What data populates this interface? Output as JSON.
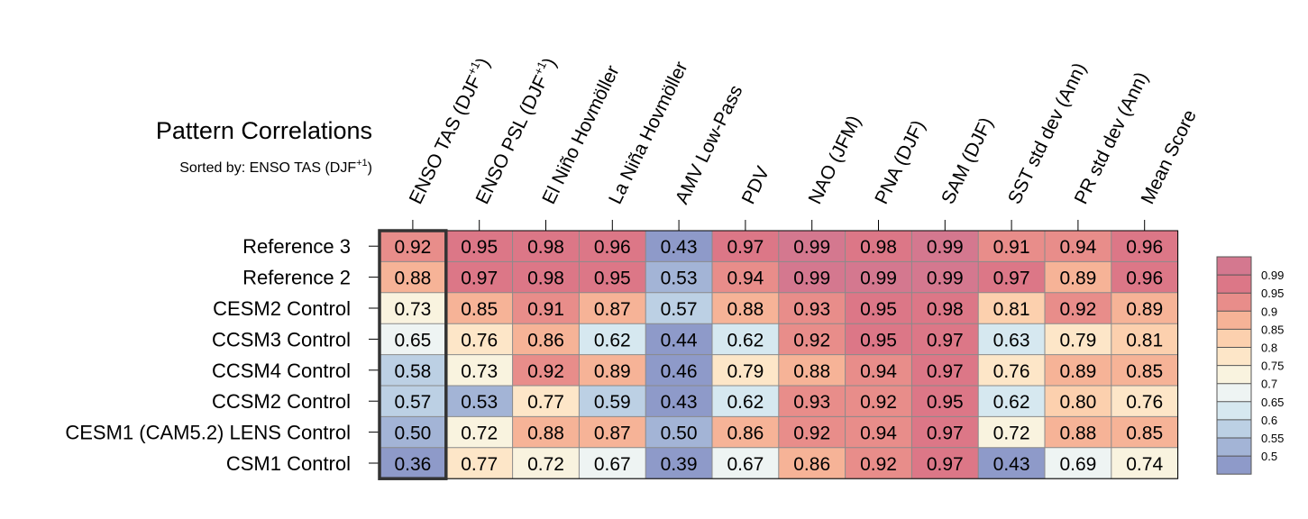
{
  "chart_data": {
    "type": "heatmap",
    "title": "Pattern Correlations",
    "subtitle": {
      "prefix": "Sorted by: ENSO TAS (DJF",
      "superscript": "+1",
      "suffix": ")"
    },
    "columns": [
      {
        "label": "ENSO TAS (DJF",
        "superscript": "+1",
        "suffix": ")"
      },
      {
        "label": "ENSO PSL (DJF",
        "superscript": "+1",
        "suffix": ")"
      },
      {
        "label": "El Niño Hovmöller"
      },
      {
        "label": "La Niña Hovmöller"
      },
      {
        "label": "AMV Low-Pass"
      },
      {
        "label": "PDV"
      },
      {
        "label": "NAO (JFM)"
      },
      {
        "label": "PNA (DJF)"
      },
      {
        "label": "SAM (DJF)"
      },
      {
        "label": "SST std dev (Ann)"
      },
      {
        "label": "PR std dev (Ann)"
      },
      {
        "label": "Mean Score"
      }
    ],
    "rows": [
      "Reference 3",
      "Reference 2",
      "CESM2 Control",
      "CCSM3 Control",
      "CCSM4 Control",
      "CCSM2 Control",
      "CESM1 (CAM5.2) LENS Control",
      "CSM1 Control"
    ],
    "values": [
      [
        0.92,
        0.95,
        0.98,
        0.96,
        0.43,
        0.97,
        0.99,
        0.98,
        0.99,
        0.91,
        0.94,
        0.96
      ],
      [
        0.88,
        0.97,
        0.98,
        0.95,
        0.53,
        0.94,
        0.99,
        0.99,
        0.99,
        0.97,
        0.89,
        0.96
      ],
      [
        0.73,
        0.85,
        0.91,
        0.87,
        0.57,
        0.88,
        0.93,
        0.95,
        0.98,
        0.81,
        0.92,
        0.89
      ],
      [
        0.65,
        0.76,
        0.86,
        0.62,
        0.44,
        0.62,
        0.92,
        0.95,
        0.97,
        0.63,
        0.79,
        0.81
      ],
      [
        0.58,
        0.73,
        0.92,
        0.89,
        0.46,
        0.79,
        0.88,
        0.94,
        0.97,
        0.76,
        0.89,
        0.85
      ],
      [
        0.57,
        0.53,
        0.77,
        0.59,
        0.43,
        0.62,
        0.93,
        0.92,
        0.95,
        0.62,
        0.8,
        0.76
      ],
      [
        0.5,
        0.72,
        0.88,
        0.87,
        0.5,
        0.86,
        0.92,
        0.94,
        0.97,
        0.72,
        0.88,
        0.85
      ],
      [
        0.36,
        0.77,
        0.72,
        0.67,
        0.39,
        0.67,
        0.86,
        0.92,
        0.97,
        0.43,
        0.69,
        0.74
      ]
    ],
    "highlighted_column": 0,
    "colorbar": {
      "levels": [
        0.5,
        0.55,
        0.6,
        0.65,
        0.7,
        0.75,
        0.8,
        0.85,
        0.9,
        0.95,
        0.99
      ],
      "labels": [
        "0.5",
        "0.55",
        "0.6",
        "0.65",
        "0.7",
        "0.75",
        "0.8",
        "0.85",
        "0.9",
        "0.95",
        "0.99"
      ],
      "colors": [
        "#8e9ac9",
        "#a3b4d6",
        "#bcd0e4",
        "#d6e8f0",
        "#eef4f3",
        "#f9f3df",
        "#fde6c8",
        "#fcd0ae",
        "#f6b397",
        "#e88d8a",
        "#dc7787",
        "#d4788f"
      ]
    }
  }
}
